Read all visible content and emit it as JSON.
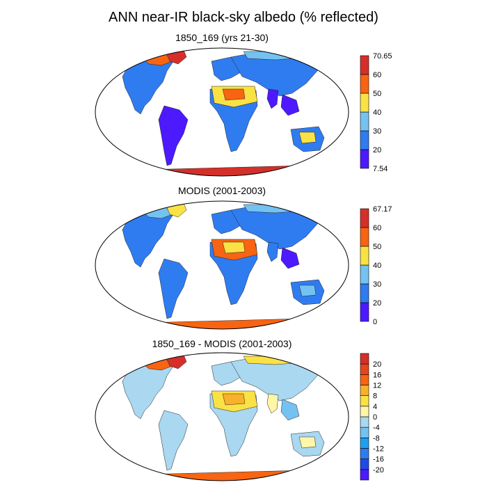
{
  "title": "ANN near-IR black-sky albedo (% reflected)",
  "panels": [
    {
      "title": "1850_169 (yrs 21-30)",
      "colorbar": {
        "colors": [
          "#4d1aff",
          "#2f7cf0",
          "#74c2f1",
          "#fbe244",
          "#f86412",
          "#d52f2a"
        ],
        "labels": [
          "7.54",
          "20",
          "30",
          "40",
          "50",
          "60",
          "70.65"
        ]
      },
      "regions": {
        "north_america": "#2f7cf0",
        "greenland": "#d52f2a",
        "canada_arctic": "#f86412",
        "south_america": "#4d1aff",
        "europe": "#2f7cf0",
        "africa_south": "#2f7cf0",
        "sahara": "#fbe244",
        "sahara_core": "#f86412",
        "asia": "#2f7cf0",
        "siberia_north": "#74c2f1",
        "india": "#4d1aff",
        "se_asia": "#4d1aff",
        "australia": "#2f7cf0",
        "australia_core": "#fbe244",
        "antarctica": "#d52f2a"
      }
    },
    {
      "title": "MODIS (2001-2003)",
      "colorbar": {
        "colors": [
          "#4d1aff",
          "#2f7cf0",
          "#74c2f1",
          "#fbe244",
          "#f86412",
          "#d52f2a"
        ],
        "labels": [
          "0",
          "20",
          "30",
          "40",
          "50",
          "60",
          "67.17"
        ]
      },
      "regions": {
        "north_america": "#2f7cf0",
        "greenland": "#fbe244",
        "canada_arctic": "#74c2f1",
        "south_america": "#2f7cf0",
        "europe": "#2f7cf0",
        "africa_south": "#2f7cf0",
        "sahara": "#f86412",
        "sahara_core": "#fbe244",
        "asia": "#2f7cf0",
        "siberia_north": "#74c2f1",
        "india": "#2f7cf0",
        "se_asia": "#4d1aff",
        "australia": "#2f7cf0",
        "australia_core": "#74c2f1",
        "antarctica": "#f86412"
      }
    },
    {
      "title": "1850_169 - MODIS (2001-2003)",
      "colorbar": {
        "colors": [
          "#4d1aff",
          "#2349e6",
          "#2f7cf0",
          "#1fa0ee",
          "#74c2f1",
          "#a9d8f0",
          "#fff6a8",
          "#fbe244",
          "#f8b12a",
          "#f86412",
          "#e8441c",
          "#d52f2a"
        ],
        "labels": [
          "-20",
          "-16",
          "-12",
          "-8",
          "-4",
          "0",
          "4",
          "8",
          "12",
          "16",
          "20"
        ]
      },
      "regions": {
        "north_america": "#a9d8f0",
        "greenland": "#d52f2a",
        "canada_arctic": "#f86412",
        "south_america": "#a9d8f0",
        "europe": "#a9d8f0",
        "africa_south": "#a9d8f0",
        "sahara": "#fbe244",
        "sahara_core": "#f8b12a",
        "asia": "#a9d8f0",
        "siberia_north": "#fbe244",
        "india": "#fff6a8",
        "se_asia": "#74c2f1",
        "australia": "#a9d8f0",
        "australia_core": "#fff6a8",
        "antarctica": "#f86412"
      }
    }
  ]
}
